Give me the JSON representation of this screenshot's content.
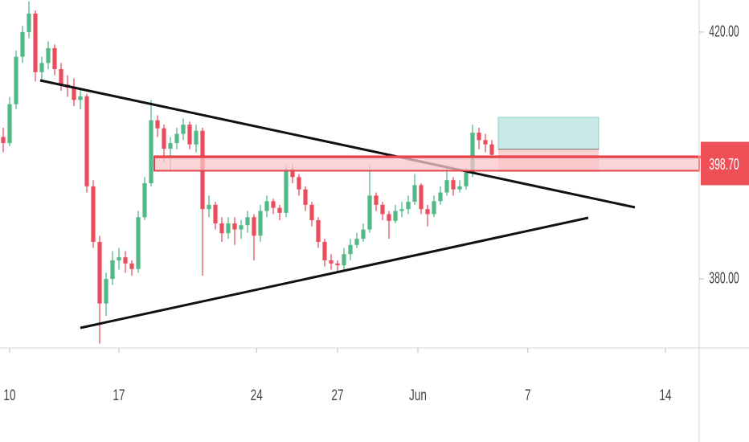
{
  "chart_data": {
    "type": "candlestick",
    "candles": [
      [
        403,
        404.5,
        400.5,
        402
      ],
      [
        402,
        409.5,
        401.5,
        408.3
      ],
      [
        408.3,
        417,
        407.5,
        416
      ],
      [
        416,
        421,
        415,
        420
      ],
      [
        420,
        425,
        419,
        423
      ],
      [
        423,
        423.5,
        412,
        413.5
      ],
      [
        413.5,
        416,
        412,
        415
      ],
      [
        415,
        418.5,
        414,
        417.4
      ],
      [
        417.4,
        418,
        413,
        414
      ],
      [
        414,
        415,
        410.5,
        411.5
      ],
      [
        411.5,
        413,
        409.5,
        411
      ],
      [
        411,
        412.5,
        408,
        409
      ],
      [
        409,
        411,
        407.5,
        409.6
      ],
      [
        409.6,
        410,
        394,
        395
      ],
      [
        395,
        396,
        385,
        386
      ],
      [
        386,
        387,
        369.5,
        376
      ],
      [
        376,
        381,
        374,
        380
      ],
      [
        380,
        384.5,
        379,
        383
      ],
      [
        383,
        385,
        381.5,
        383.5
      ],
      [
        383.5,
        384.5,
        381,
        382.5
      ],
      [
        382.5,
        383,
        380.5,
        381.6
      ],
      [
        381.6,
        391,
        381,
        390
      ],
      [
        390,
        396.5,
        389.5,
        395.5
      ],
      [
        395.5,
        409,
        395,
        405.7
      ],
      [
        405.7,
        406.5,
        403,
        404.4
      ],
      [
        404.4,
        405,
        399,
        401.1
      ],
      [
        401.1,
        403,
        397.5,
        402
      ],
      [
        402,
        404.5,
        401,
        403.5
      ],
      [
        403.5,
        406,
        402.5,
        405
      ],
      [
        405,
        405.5,
        401,
        401.8
      ],
      [
        401.8,
        405,
        400.5,
        404
      ],
      [
        404,
        404.5,
        380.5,
        391.3
      ],
      [
        391.3,
        393.5,
        390,
        392
      ],
      [
        392,
        392.5,
        388,
        389
      ],
      [
        389,
        390,
        386,
        387.4
      ],
      [
        387.4,
        390,
        386.5,
        389
      ],
      [
        389,
        390,
        385.5,
        388
      ],
      [
        388,
        389.5,
        386.5,
        388.7
      ],
      [
        388.7,
        391,
        387.5,
        390
      ],
      [
        390,
        390.5,
        383,
        387
      ],
      [
        387,
        392,
        386,
        391
      ],
      [
        391,
        393.5,
        390,
        392.6
      ],
      [
        392.6,
        393,
        390.5,
        391.5
      ],
      [
        391.5,
        392,
        389.5,
        390.7
      ],
      [
        390.7,
        398.5,
        390,
        397.8
      ],
      [
        397.8,
        398.5,
        395.5,
        396.5
      ],
      [
        396.5,
        397,
        393.5,
        394.5
      ],
      [
        394.5,
        395,
        391,
        392
      ],
      [
        392,
        392.5,
        388.5,
        389.5
      ],
      [
        389.5,
        390,
        385,
        386
      ],
      [
        386,
        386.5,
        382,
        383
      ],
      [
        383,
        384,
        381.5,
        382.5
      ],
      [
        382.5,
        383,
        381,
        382.2
      ],
      [
        382.2,
        385,
        381.5,
        384
      ],
      [
        384,
        386.5,
        383,
        385.5
      ],
      [
        385.5,
        387.5,
        385,
        386.5
      ],
      [
        386.5,
        389,
        386,
        388
      ],
      [
        388,
        398.5,
        387.5,
        393.5
      ],
      [
        393.5,
        394,
        391,
        392
      ],
      [
        392,
        392.5,
        389.5,
        390.5
      ],
      [
        390.5,
        391,
        386.5,
        389.4
      ],
      [
        389.4,
        392,
        389,
        391
      ],
      [
        391,
        392.5,
        390,
        391.3
      ],
      [
        391.3,
        393.5,
        390.5,
        392.5
      ],
      [
        392.5,
        397,
        392,
        395.2
      ],
      [
        395.2,
        395.5,
        390.5,
        391.3
      ],
      [
        391.3,
        392,
        388.5,
        390.5
      ],
      [
        390.5,
        393.5,
        390,
        392.6
      ],
      [
        392.6,
        395,
        392,
        394
      ],
      [
        394,
        398,
        393.5,
        396
      ],
      [
        396,
        396.5,
        393.5,
        394.5
      ],
      [
        394.5,
        396,
        394,
        395
      ],
      [
        395,
        398,
        394.5,
        397.2
      ],
      [
        397.2,
        405,
        396.5,
        403.7
      ],
      [
        403.7,
        404.5,
        401,
        402.5
      ],
      [
        402.5,
        403.5,
        400.5,
        401.8
      ],
      [
        401.8,
        402.5,
        399.5,
        400.1
      ]
    ],
    "up_color": "#53b987",
    "down_color": "#eb4d5c",
    "xlim": [
      -0.5,
      108.25
    ],
    "xticks": [
      {
        "value": 1,
        "label": "10"
      },
      {
        "value": 18,
        "label": "17"
      },
      {
        "value": 39.4,
        "label": "24"
      },
      {
        "value": 52,
        "label": "27"
      },
      {
        "value": 64.5,
        "label": "Jun"
      },
      {
        "value": 81.6,
        "label": "7"
      },
      {
        "value": 103,
        "label": "14"
      }
    ],
    "ylim": [
      368.8,
      425.2
    ],
    "yticks": [
      {
        "value": 380,
        "label": "380.00"
      },
      {
        "value": 420,
        "label": "420.00"
      }
    ],
    "last_price": {
      "value": 398.7,
      "label": "398.70"
    }
  }
}
